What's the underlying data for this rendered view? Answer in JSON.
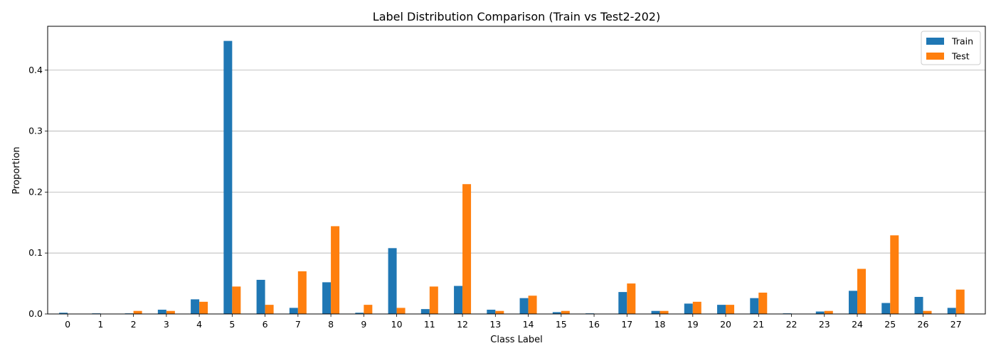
{
  "chart_data": {
    "type": "bar",
    "title": "Label Distribution Comparison (Train vs Test2-202)",
    "xlabel": "Class Label",
    "ylabel": "Proportion",
    "categories": [
      "0",
      "1",
      "2",
      "3",
      "4",
      "5",
      "6",
      "7",
      "8",
      "9",
      "10",
      "11",
      "12",
      "13",
      "14",
      "15",
      "16",
      "17",
      "18",
      "19",
      "20",
      "21",
      "22",
      "23",
      "24",
      "25",
      "26",
      "27"
    ],
    "ylim": [
      0,
      0.472
    ],
    "yticks": [
      "0.0",
      "0.1",
      "0.2",
      "0.3",
      "0.4"
    ],
    "grid": "y",
    "legend_position": "top-right",
    "series": [
      {
        "name": "Train",
        "color": "#1f77b4",
        "values": [
          0.002,
          0.001,
          0.001,
          0.007,
          0.024,
          0.448,
          0.056,
          0.01,
          0.052,
          0.002,
          0.108,
          0.008,
          0.046,
          0.007,
          0.026,
          0.003,
          0.001,
          0.036,
          0.005,
          0.017,
          0.015,
          0.026,
          0.001,
          0.004,
          0.038,
          0.018,
          0.028,
          0.01
        ]
      },
      {
        "name": "Test",
        "color": "#ff7f0e",
        "values": [
          0,
          0,
          0.005,
          0.005,
          0.02,
          0.045,
          0.015,
          0.07,
          0.144,
          0.015,
          0.01,
          0.045,
          0.213,
          0.005,
          0.03,
          0.005,
          0,
          0.05,
          0.005,
          0.02,
          0.015,
          0.035,
          0,
          0.005,
          0.074,
          0.129,
          0.005,
          0.04
        ]
      }
    ]
  }
}
